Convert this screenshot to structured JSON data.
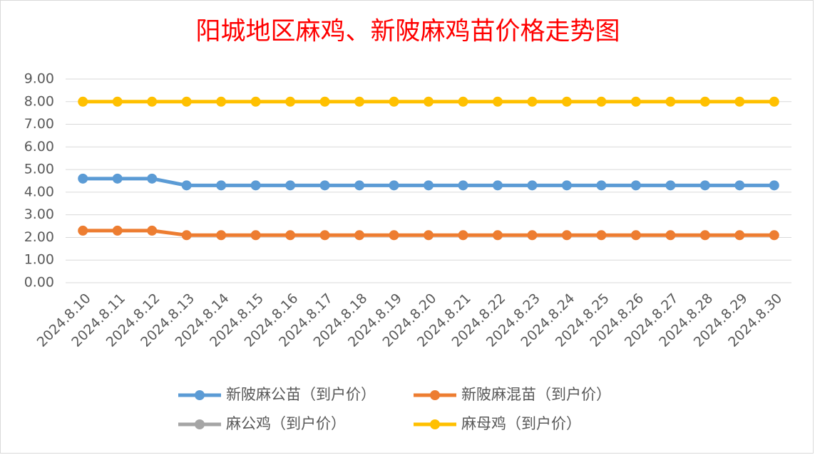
{
  "chart_data": {
    "type": "line",
    "title": "阳城地区麻鸡、新陂麻鸡苗价格走势图",
    "categories": [
      "2024.8.10",
      "2024.8.11",
      "2024.8.12",
      "2024.8.13",
      "2024.8.14",
      "2024.8.15",
      "2024.8.16",
      "2024.8.17",
      "2024.8.18",
      "2024.8.19",
      "2024.8.20",
      "2024.8.21",
      "2024.8.22",
      "2024.8.23",
      "2024.8.24",
      "2024.8.25",
      "2024.8.26",
      "2024.8.27",
      "2024.8.28",
      "2024.8.29",
      "2024.8.30"
    ],
    "series": [
      {
        "name": "新陂麻公苗（到户价）",
        "color": "#5b9bd5",
        "values": [
          4.6,
          4.6,
          4.6,
          4.3,
          4.3,
          4.3,
          4.3,
          4.3,
          4.3,
          4.3,
          4.3,
          4.3,
          4.3,
          4.3,
          4.3,
          4.3,
          4.3,
          4.3,
          4.3,
          4.3,
          4.3
        ]
      },
      {
        "name": "新陂麻混苗（到户价）",
        "color": "#ed7d31",
        "values": [
          2.3,
          2.3,
          2.3,
          2.1,
          2.1,
          2.1,
          2.1,
          2.1,
          2.1,
          2.1,
          2.1,
          2.1,
          2.1,
          2.1,
          2.1,
          2.1,
          2.1,
          2.1,
          2.1,
          2.1,
          2.1
        ]
      },
      {
        "name": "麻公鸡（到户价）",
        "color": "#a5a5a5",
        "values": [
          null,
          null,
          null,
          null,
          null,
          null,
          null,
          null,
          null,
          null,
          null,
          null,
          null,
          null,
          null,
          null,
          null,
          null,
          null,
          null,
          null
        ]
      },
      {
        "name": "麻母鸡（到户价）",
        "color": "#ffc000",
        "values": [
          8,
          8,
          8,
          8,
          8,
          8,
          8,
          8,
          8,
          8,
          8,
          8,
          8,
          8,
          8,
          8,
          8,
          8,
          8,
          8,
          8
        ]
      }
    ],
    "ylim": [
      0,
      9
    ],
    "yticks": [
      {
        "value": 0,
        "label": "0.00"
      },
      {
        "value": 1,
        "label": "1.00"
      },
      {
        "value": 2,
        "label": "2.00"
      },
      {
        "value": 3,
        "label": "3.00"
      },
      {
        "value": 4,
        "label": "4.00"
      },
      {
        "value": 5,
        "label": "5.00"
      },
      {
        "value": 6,
        "label": "6.00"
      },
      {
        "value": 7,
        "label": "7.00"
      },
      {
        "value": 8,
        "label": "8.00"
      },
      {
        "value": 9,
        "label": "9.00"
      }
    ],
    "grid": true,
    "legend": "bottom"
  }
}
